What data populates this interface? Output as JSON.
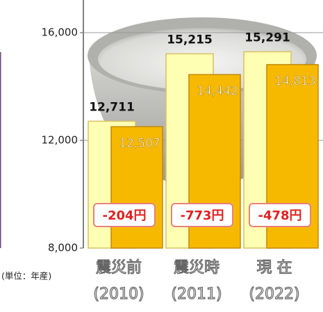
{
  "chart_data": {
    "type": "bar",
    "categories": [
      "震災前",
      "震災時",
      "現 在"
    ],
    "category_years": [
      "(2010)",
      "(2011)",
      "(2022)"
    ],
    "unit_label": "(単位：年産)",
    "series": [
      {
        "color": "#ffffb4",
        "values": [
          12711,
          15215,
          15291
        ],
        "value_labels": [
          "12,711",
          "15,215",
          "15,291"
        ]
      },
      {
        "color": "#f7b900",
        "values": [
          12507,
          14442,
          14813
        ],
        "value_labels": [
          "12,507",
          "14,442",
          "14,813"
        ]
      }
    ],
    "annotations": [
      "-204円",
      "-773円",
      "-478円"
    ],
    "ylim": [
      8000,
      17200
    ],
    "yticks": [
      {
        "value": 8000,
        "label": "8,000"
      },
      {
        "value": 12000,
        "label": "12,000"
      },
      {
        "value": 16000,
        "label": "16,000"
      }
    ],
    "grid": true
  }
}
